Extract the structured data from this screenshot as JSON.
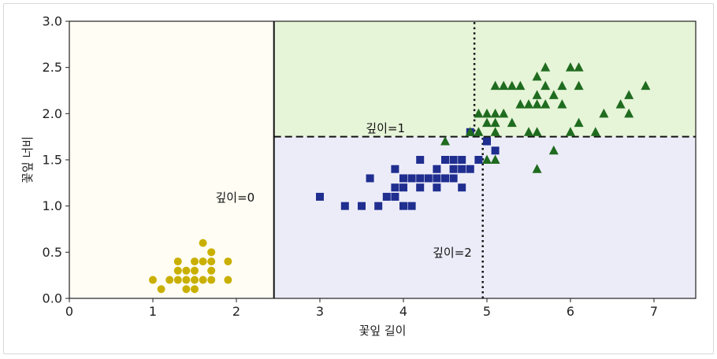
{
  "chart_data": {
    "type": "scatter",
    "title": "",
    "xlabel": "꽃잎 길이",
    "ylabel": "꽃잎 너비",
    "xlim": [
      0,
      7.5
    ],
    "ylim": [
      0,
      3.0
    ],
    "xticks": [
      "0",
      "1",
      "2",
      "3",
      "4",
      "5",
      "6",
      "7"
    ],
    "yticks": [
      "0.0",
      "0.5",
      "1.0",
      "1.5",
      "2.0",
      "2.5",
      "3.0"
    ],
    "grid": false,
    "regions": [
      {
        "x": [
          0,
          2.45
        ],
        "y": [
          0,
          3.0
        ],
        "color": "#fffdf4"
      },
      {
        "x": [
          2.45,
          7.5
        ],
        "y": [
          1.75,
          3.0
        ],
        "color": "#e6f4d8"
      },
      {
        "x": [
          2.45,
          7.5
        ],
        "y": [
          0,
          1.75
        ],
        "color": "#ececf9"
      }
    ],
    "boundaries": [
      {
        "x": [
          2.45,
          2.45
        ],
        "y": [
          0,
          3.0
        ],
        "style": "solid",
        "width": 2
      },
      {
        "x": [
          2.45,
          7.5
        ],
        "y": [
          1.75,
          1.75
        ],
        "style": "dashed",
        "width": 2
      },
      {
        "x": [
          4.95,
          4.95
        ],
        "y": [
          0,
          1.75
        ],
        "style": "dotted",
        "width": 2.5
      },
      {
        "x": [
          4.85,
          4.85
        ],
        "y": [
          1.75,
          3.0
        ],
        "style": "dotted",
        "width": 2.5
      }
    ],
    "annotations": [
      {
        "text": "깊이=0",
        "x": 1.75,
        "y": 1.05
      },
      {
        "text": "깊이=1",
        "x": 3.55,
        "y": 1.8
      },
      {
        "text": "깊이=2",
        "x": 4.35,
        "y": 0.45
      }
    ],
    "series": [
      {
        "marker": "circle",
        "color": "#c9b000",
        "points": [
          [
            1.0,
            0.2
          ],
          [
            1.1,
            0.1
          ],
          [
            1.2,
            0.2
          ],
          [
            1.3,
            0.2
          ],
          [
            1.3,
            0.3
          ],
          [
            1.3,
            0.4
          ],
          [
            1.4,
            0.1
          ],
          [
            1.4,
            0.2
          ],
          [
            1.4,
            0.3
          ],
          [
            1.5,
            0.1
          ],
          [
            1.5,
            0.2
          ],
          [
            1.5,
            0.3
          ],
          [
            1.5,
            0.4
          ],
          [
            1.6,
            0.2
          ],
          [
            1.6,
            0.4
          ],
          [
            1.6,
            0.6
          ],
          [
            1.7,
            0.2
          ],
          [
            1.7,
            0.3
          ],
          [
            1.7,
            0.4
          ],
          [
            1.7,
            0.5
          ],
          [
            1.9,
            0.2
          ],
          [
            1.9,
            0.4
          ]
        ]
      },
      {
        "marker": "square",
        "color": "#1f2e8f",
        "points": [
          [
            3.0,
            1.1
          ],
          [
            3.3,
            1.0
          ],
          [
            3.5,
            1.0
          ],
          [
            3.6,
            1.3
          ],
          [
            3.7,
            1.0
          ],
          [
            3.8,
            1.1
          ],
          [
            3.9,
            1.1
          ],
          [
            3.9,
            1.2
          ],
          [
            3.9,
            1.4
          ],
          [
            4.0,
            1.0
          ],
          [
            4.0,
            1.2
          ],
          [
            4.0,
            1.3
          ],
          [
            4.1,
            1.0
          ],
          [
            4.1,
            1.3
          ],
          [
            4.2,
            1.2
          ],
          [
            4.2,
            1.3
          ],
          [
            4.2,
            1.5
          ],
          [
            4.3,
            1.3
          ],
          [
            4.4,
            1.2
          ],
          [
            4.4,
            1.3
          ],
          [
            4.4,
            1.4
          ],
          [
            4.5,
            1.3
          ],
          [
            4.5,
            1.5
          ],
          [
            4.6,
            1.3
          ],
          [
            4.6,
            1.4
          ],
          [
            4.6,
            1.5
          ],
          [
            4.7,
            1.2
          ],
          [
            4.7,
            1.4
          ],
          [
            4.7,
            1.5
          ],
          [
            4.8,
            1.4
          ],
          [
            4.8,
            1.8
          ],
          [
            4.9,
            1.5
          ],
          [
            5.0,
            1.7
          ],
          [
            5.1,
            1.6
          ]
        ]
      },
      {
        "marker": "triangle",
        "color": "#1f6b1f",
        "points": [
          [
            4.5,
            1.7
          ],
          [
            4.8,
            1.8
          ],
          [
            4.9,
            1.8
          ],
          [
            5.0,
            1.5
          ],
          [
            5.1,
            1.5
          ],
          [
            4.9,
            2.0
          ],
          [
            5.0,
            2.0
          ],
          [
            5.0,
            1.9
          ],
          [
            5.1,
            1.8
          ],
          [
            5.1,
            1.9
          ],
          [
            5.1,
            2.0
          ],
          [
            5.1,
            2.3
          ],
          [
            5.2,
            2.0
          ],
          [
            5.2,
            2.3
          ],
          [
            5.3,
            1.9
          ],
          [
            5.3,
            2.3
          ],
          [
            5.4,
            2.1
          ],
          [
            5.4,
            2.3
          ],
          [
            5.5,
            1.8
          ],
          [
            5.5,
            2.1
          ],
          [
            5.6,
            1.4
          ],
          [
            5.6,
            1.8
          ],
          [
            5.6,
            2.1
          ],
          [
            5.6,
            2.2
          ],
          [
            5.6,
            2.4
          ],
          [
            5.7,
            2.1
          ],
          [
            5.7,
            2.3
          ],
          [
            5.7,
            2.5
          ],
          [
            5.8,
            1.6
          ],
          [
            5.8,
            2.2
          ],
          [
            5.9,
            2.1
          ],
          [
            5.9,
            2.3
          ],
          [
            6.0,
            1.8
          ],
          [
            6.0,
            2.5
          ],
          [
            6.1,
            1.9
          ],
          [
            6.1,
            2.3
          ],
          [
            6.1,
            2.5
          ],
          [
            6.3,
            1.8
          ],
          [
            6.4,
            2.0
          ],
          [
            6.6,
            2.1
          ],
          [
            6.7,
            2.0
          ],
          [
            6.7,
            2.2
          ],
          [
            6.9,
            2.3
          ]
        ]
      }
    ]
  }
}
